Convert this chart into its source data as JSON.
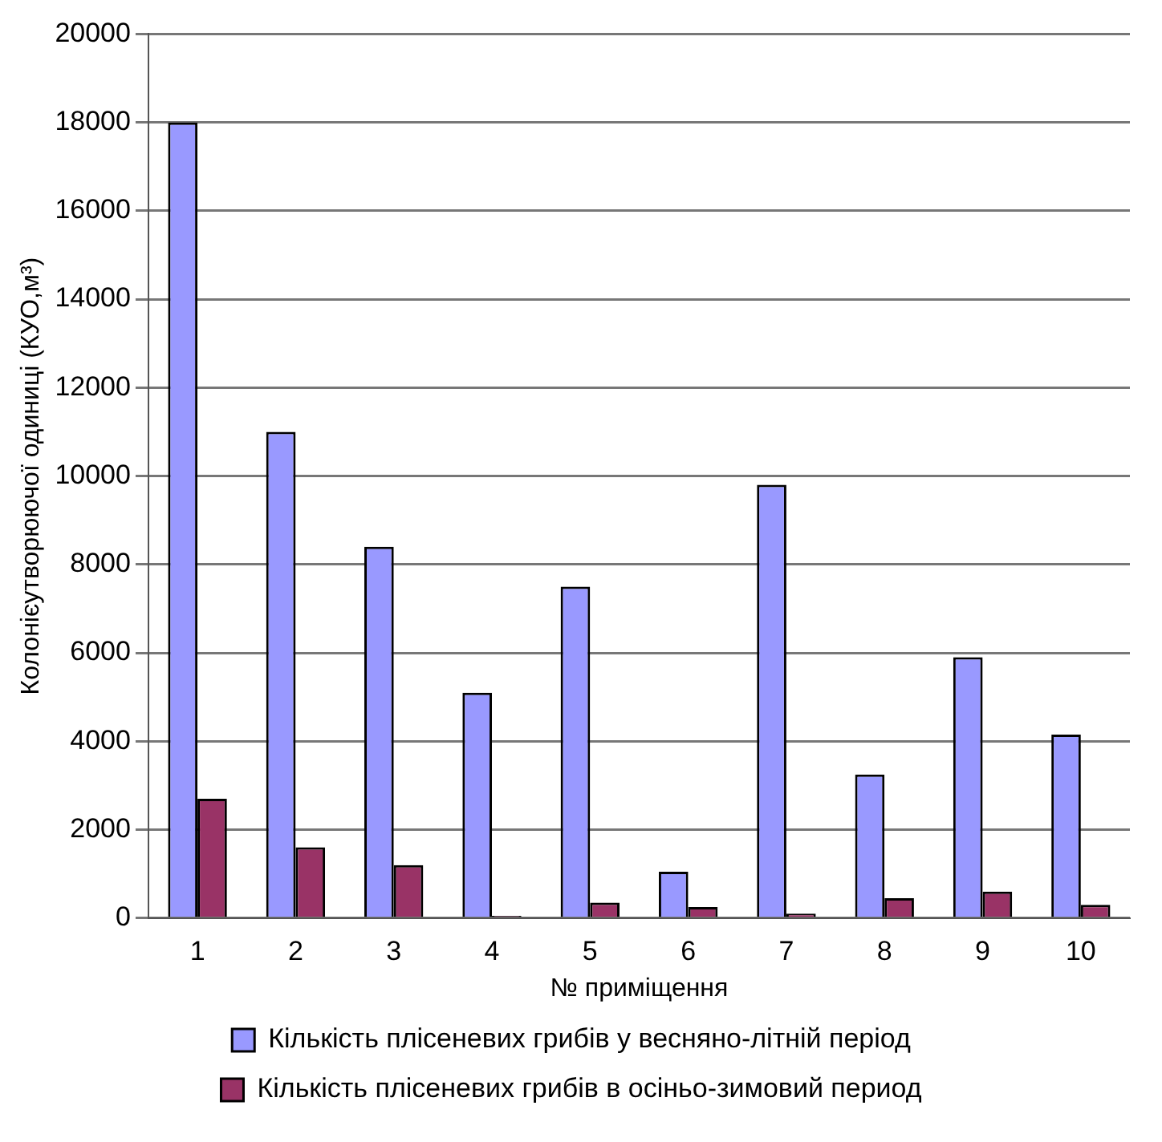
{
  "chart_data": {
    "type": "bar",
    "xlabel": "№ приміщення",
    "ylabel": "Колонієутворюючої одиниці (КУО,м³)",
    "categories": [
      "1",
      "2",
      "3",
      "4",
      "5",
      "6",
      "7",
      "8",
      "9",
      "10"
    ],
    "series": [
      {
        "name": "Кількість плісеневих грибів у весняно-літній період",
        "color": "#9999ff",
        "values": [
          18000,
          11000,
          8400,
          5100,
          7500,
          1050,
          9800,
          3250,
          5900,
          4150
        ]
      },
      {
        "name": "Кількість плісеневих грибів в осіньо-зимовий период",
        "color": "#993366",
        "values": [
          2700,
          1600,
          1200,
          50,
          350,
          250,
          100,
          450,
          600,
          300
        ]
      }
    ],
    "ylim": [
      0,
      20000
    ],
    "yticks": [
      0,
      2000,
      4000,
      6000,
      8000,
      10000,
      12000,
      14000,
      16000,
      18000,
      20000
    ],
    "grid": "y",
    "legend": "bottom"
  }
}
